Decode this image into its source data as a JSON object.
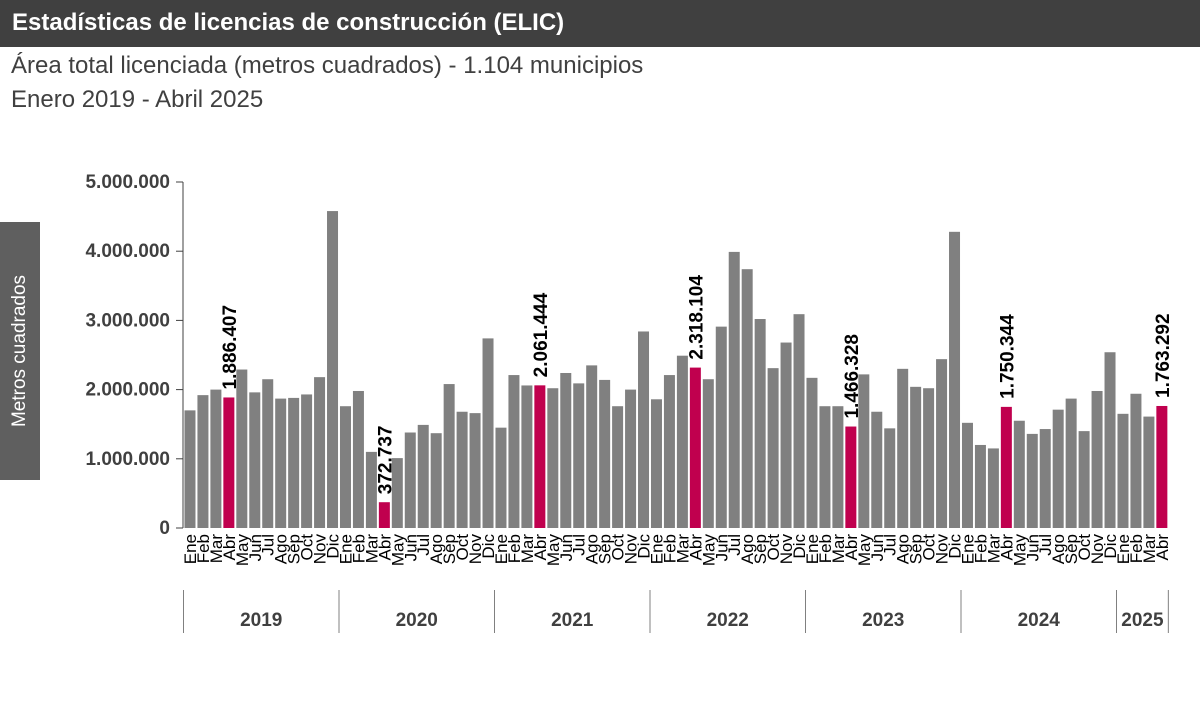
{
  "header": {
    "title": "Estadísticas de licencias de construcción (ELIC)",
    "subtitle": "Área total licenciada (metros cuadrados) - 1.104 municipios",
    "period": "Enero 2019 - Abril 2025"
  },
  "colors": {
    "bar": "#808080",
    "highlight": "#c0004e",
    "header_bg": "#404040",
    "ylabel_bg": "#5f5f5f",
    "text": "#404040"
  },
  "chart_data": {
    "type": "bar",
    "ylabel": "Metros cuadrados",
    "ylim": [
      0,
      5000000
    ],
    "yticks": [
      0,
      1000000,
      2000000,
      3000000,
      4000000,
      5000000
    ],
    "ytick_labels": [
      "0",
      "1.000.000",
      "2.000.000",
      "3.000.000",
      "4.000.000",
      "5.000.000"
    ],
    "years": [
      {
        "year": "2019",
        "months": [
          "Ene",
          "Feb",
          "Mar",
          "Abr",
          "May",
          "Jun",
          "Jul",
          "Ago",
          "Sep",
          "Oct",
          "Nov",
          "Dic"
        ],
        "values": [
          1700000,
          1920000,
          2000000,
          1886407,
          2290000,
          1960000,
          2150000,
          1870000,
          1880000,
          1930000,
          2180000,
          4580000
        ]
      },
      {
        "year": "2020",
        "months": [
          "Ene",
          "Feb",
          "Mar",
          "Abr",
          "May",
          "Jun",
          "Jul",
          "Ago",
          "Sep",
          "Oct",
          "Nov",
          "Dic"
        ],
        "values": [
          1760000,
          1980000,
          1100000,
          372737,
          1010000,
          1380000,
          1490000,
          1370000,
          2080000,
          1680000,
          1660000,
          2740000
        ]
      },
      {
        "year": "2021",
        "months": [
          "Ene",
          "Feb",
          "Mar",
          "Abr",
          "May",
          "Jun",
          "Jul",
          "Ago",
          "Sep",
          "Oct",
          "Nov",
          "Dic"
        ],
        "values": [
          1450000,
          2210000,
          2060000,
          2061444,
          2020000,
          2240000,
          2090000,
          2350000,
          2140000,
          1760000,
          2000000,
          2840000
        ]
      },
      {
        "year": "2022",
        "months": [
          "Ene",
          "Feb",
          "Mar",
          "Abr",
          "May",
          "Jun",
          "Jul",
          "Ago",
          "Sep",
          "Oct",
          "Nov",
          "Dic"
        ],
        "values": [
          1860000,
          2210000,
          2490000,
          2318104,
          2150000,
          2910000,
          3990000,
          3740000,
          3020000,
          2310000,
          2680000,
          3090000
        ]
      },
      {
        "year": "2023",
        "months": [
          "Ene",
          "Feb",
          "Mar",
          "Abr",
          "May",
          "Jun",
          "Jul",
          "Ago",
          "Sep",
          "Oct",
          "Nov",
          "Dic"
        ],
        "values": [
          2170000,
          1760000,
          1760000,
          1466328,
          2220000,
          1680000,
          1440000,
          2300000,
          2040000,
          2020000,
          2440000,
          4280000
        ]
      },
      {
        "year": "2024",
        "months": [
          "Ene",
          "Feb",
          "Mar",
          "Abr",
          "May",
          "Jun",
          "Jul",
          "Ago",
          "Sep",
          "Oct",
          "Nov",
          "Dic"
        ],
        "values": [
          1520000,
          1200000,
          1150000,
          1750344,
          1550000,
          1360000,
          1430000,
          1710000,
          1870000,
          1400000,
          1980000,
          2540000
        ]
      },
      {
        "year": "2025",
        "months": [
          "Ene",
          "Feb",
          "Mar",
          "Abr"
        ],
        "values": [
          1650000,
          1940000,
          1610000,
          1763292
        ]
      }
    ],
    "highlight_month": "Abr",
    "data_labels": [
      "1.886.407",
      "372.737",
      "2.061.444",
      "2.318.104",
      "1.466.328",
      "1.750.344",
      "1.763.292"
    ]
  }
}
